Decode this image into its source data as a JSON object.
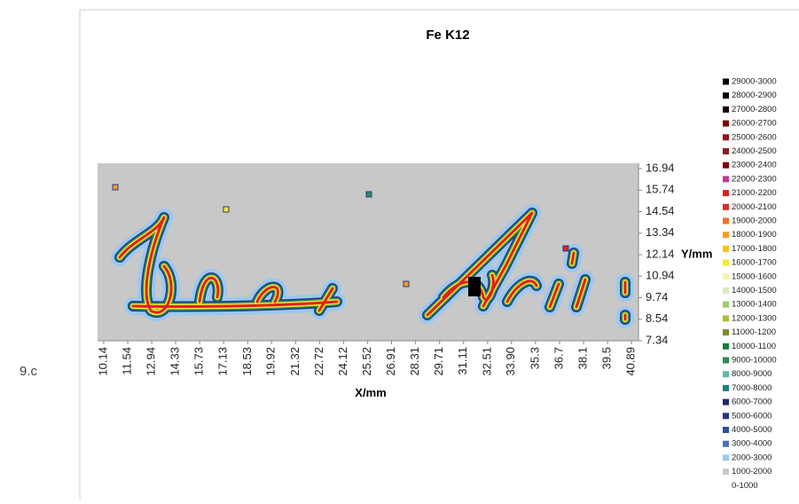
{
  "caption": "9.c",
  "chart_data": {
    "type": "contour",
    "title": "Fe K12",
    "x_label": "X/mm",
    "y_label": "Y/mm",
    "xlim": [
      9.78,
      41.3
    ],
    "ylim": [
      7.34,
      17.24
    ],
    "xticks": [
      10.14,
      11.54,
      12.94,
      14.33,
      15.73,
      17.13,
      18.53,
      19.92,
      21.32,
      22.72,
      24.12,
      25.52,
      26.91,
      28.31,
      29.71,
      31.11,
      32.51,
      {
        "value": 33.9,
        "label": "33.90"
      },
      35.3,
      36.7,
      38.1,
      39.5,
      40.89
    ],
    "yticks": [
      7.34,
      8.54,
      9.74,
      10.94,
      12.14,
      13.34,
      14.54,
      15.74,
      16.94
    ],
    "legend": [
      {
        "name": "29000-3000",
        "color": "#000000"
      },
      {
        "name": "28000-2900",
        "color": "#0a0000"
      },
      {
        "name": "27000-2800",
        "color": "#1a0000"
      },
      {
        "name": "26000-2700",
        "color": "#7b0000"
      },
      {
        "name": "25000-2600",
        "color": "#8b1a1a"
      },
      {
        "name": "24000-2500",
        "color": "#8b2020"
      },
      {
        "name": "23000-2400",
        "color": "#800000"
      },
      {
        "name": "22000-2300",
        "color": "#c0398e"
      },
      {
        "name": "21000-2200",
        "color": "#e02020"
      },
      {
        "name": "20000-2100",
        "color": "#d73027"
      },
      {
        "name": "19000-2000",
        "color": "#f46d2a"
      },
      {
        "name": "18000-1900",
        "color": "#f99c1c"
      },
      {
        "name": "17000-1800",
        "color": "#fdc010"
      },
      {
        "name": "16000-1700",
        "color": "#f5e830"
      },
      {
        "name": "15000-1600",
        "color": "#f5f5b0"
      },
      {
        "name": "14000-1500",
        "color": "#d9ebc0"
      },
      {
        "name": "13000-1400",
        "color": "#9ccc65"
      },
      {
        "name": "12000-1300",
        "color": "#a5c23a"
      },
      {
        "name": "11000-1200",
        "color": "#808a2a"
      },
      {
        "name": "10000-1100",
        "color": "#1a7a3a"
      },
      {
        "name": "9000-10000",
        "color": "#2e8b57"
      },
      {
        "name": "8000-9000",
        "color": "#5fb8b0"
      },
      {
        "name": "7000-8000",
        "color": "#178080"
      },
      {
        "name": "6000-7000",
        "color": "#1a2a6a"
      },
      {
        "name": "5000-6000",
        "color": "#1f3a8a"
      },
      {
        "name": "4000-5000",
        "color": "#2d4fa0"
      },
      {
        "name": "3000-4000",
        "color": "#4a70c0"
      },
      {
        "name": "2000-3000",
        "color": "#9cc8f0"
      },
      {
        "name": "1000-2000",
        "color": "#c8c8c8"
      },
      {
        "name": "0-1000",
        "color": "#ffffff"
      }
    ]
  }
}
